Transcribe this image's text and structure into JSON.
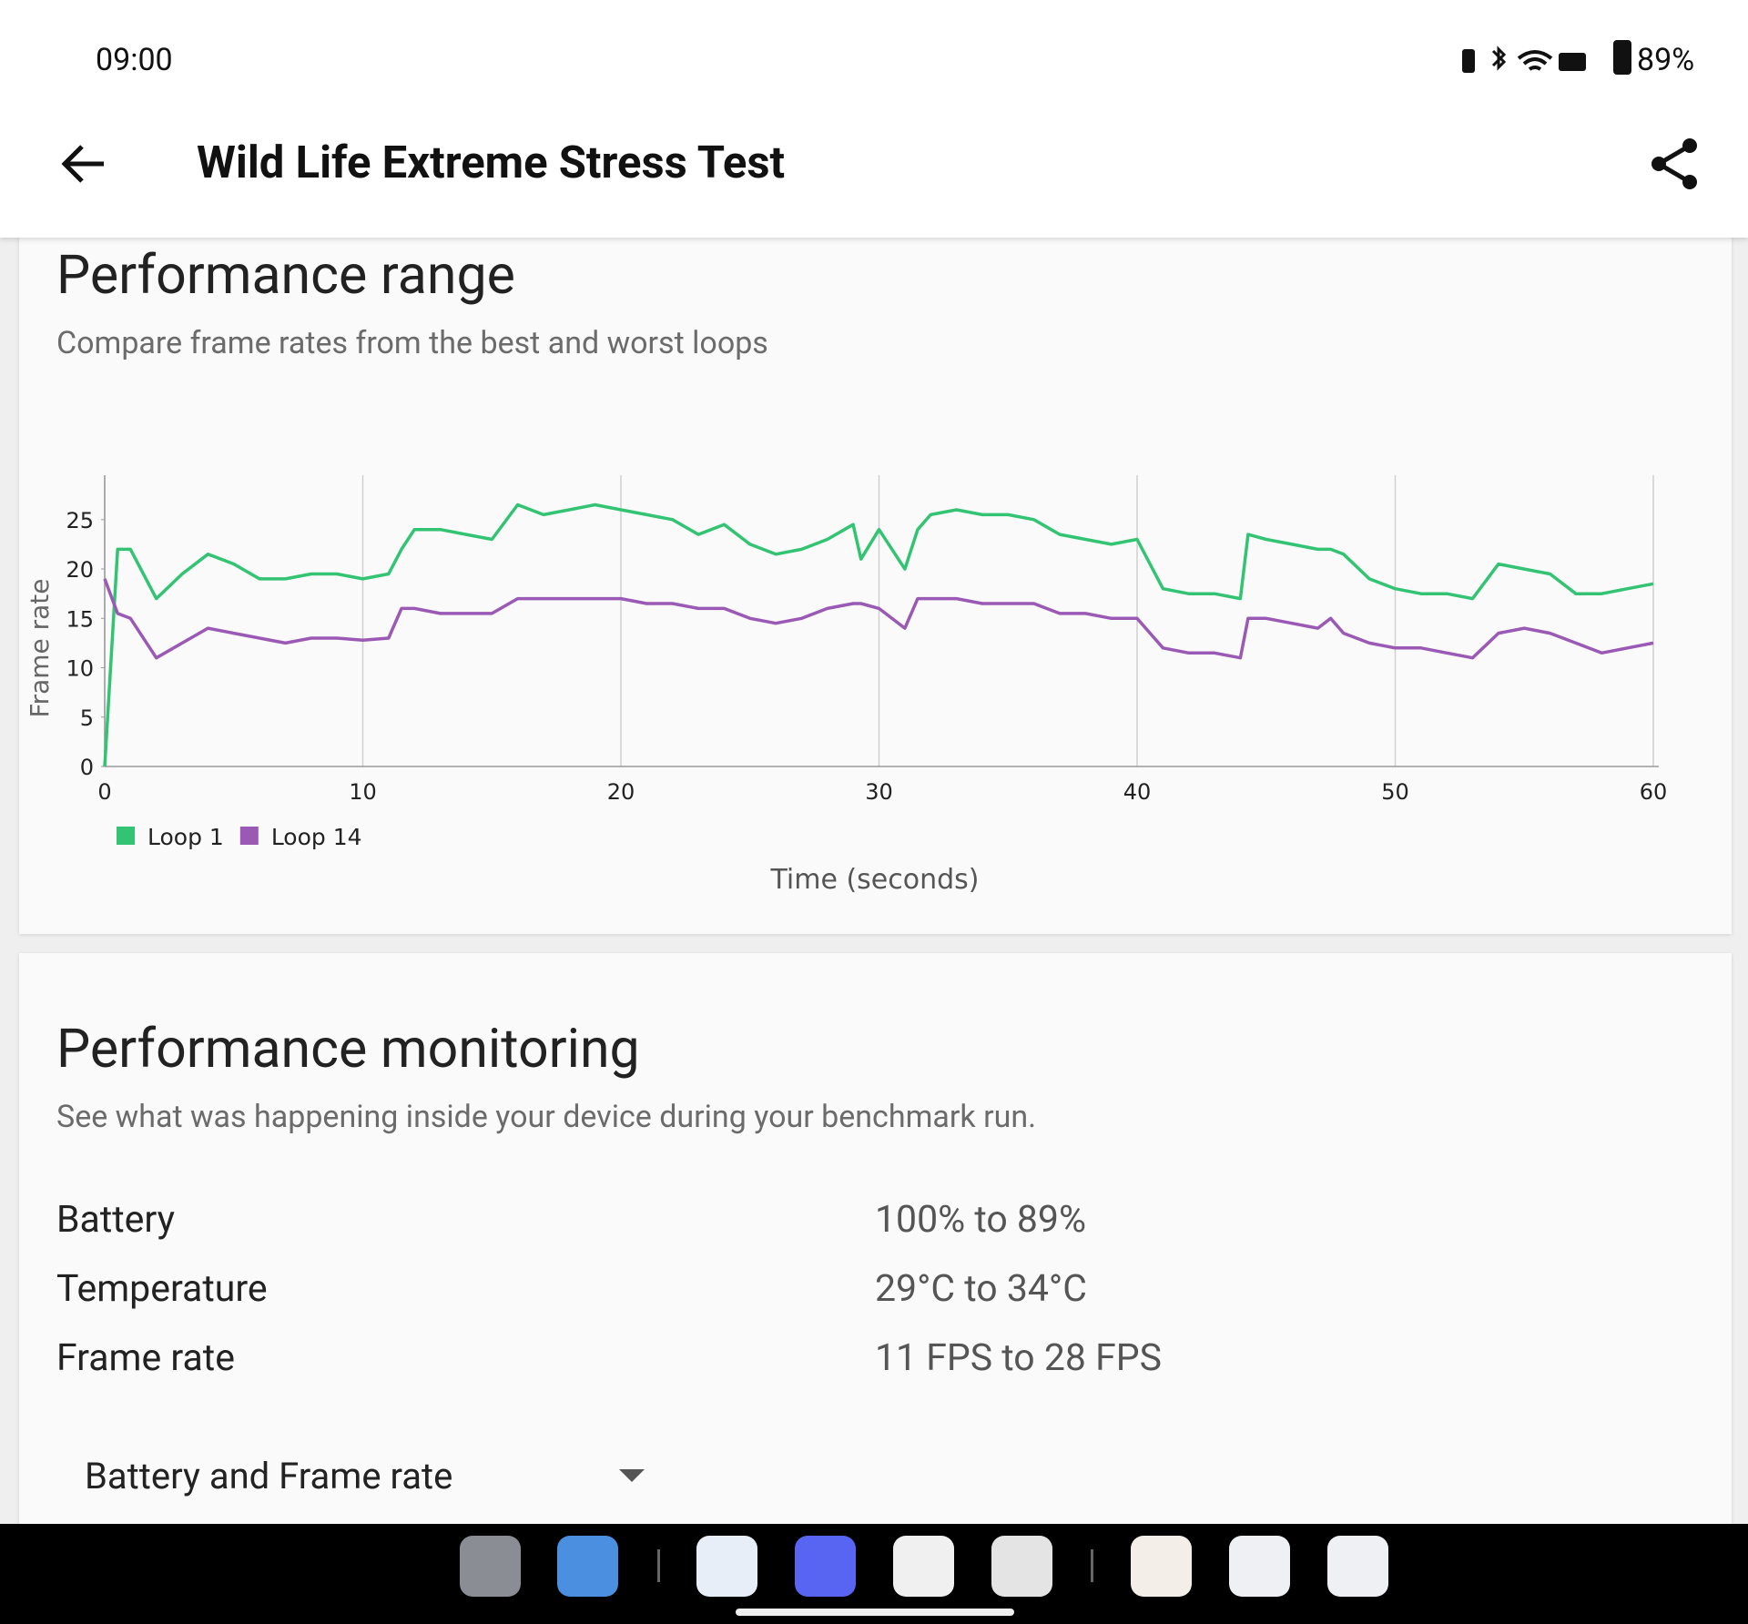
{
  "status_bar": {
    "time": "09:00",
    "battery": "89%"
  },
  "app_bar": {
    "title": "Wild Life Extreme Stress Test"
  },
  "performance_range": {
    "title": "Performance range",
    "subtitle": "Compare frame rates from the best and worst loops"
  },
  "chart_data": {
    "type": "line",
    "y_label": "Frame rate",
    "x_label": "Time (seconds)",
    "x": [
      0,
      0.5,
      1,
      2,
      3,
      4,
      5,
      6,
      7,
      8,
      9,
      10,
      11,
      11.5,
      12,
      13,
      14,
      15,
      16,
      17,
      18,
      19,
      20,
      21,
      22,
      23,
      24,
      25,
      26,
      27,
      28,
      29,
      29.3,
      30,
      31,
      31.5,
      32,
      33,
      34,
      35,
      36,
      37,
      38,
      39,
      40,
      41,
      42,
      43,
      44,
      44.3,
      45,
      46,
      47,
      47.5,
      48,
      49,
      50,
      51,
      52,
      53,
      54,
      55,
      56,
      57,
      58,
      59,
      60
    ],
    "series": [
      {
        "name": "Loop 1",
        "color": "#33c473",
        "values": [
          0,
          22,
          22,
          17,
          19.5,
          21.5,
          20.5,
          19,
          19,
          19.5,
          19.5,
          19,
          19.5,
          22,
          24,
          24,
          23.5,
          23,
          26.5,
          25.5,
          26,
          26.5,
          26,
          25.5,
          25,
          23.5,
          24.5,
          22.5,
          21.5,
          22,
          23,
          24.5,
          21,
          24,
          20,
          24,
          25.5,
          26,
          25.5,
          25.5,
          25,
          23.5,
          23,
          22.5,
          23,
          18,
          17.5,
          17.5,
          17,
          23.5,
          23,
          22.5,
          22,
          22,
          21.5,
          19,
          18,
          17.5,
          17.5,
          17,
          20.5,
          20,
          19.5,
          17.5,
          17.5,
          18,
          18.5
        ]
      },
      {
        "name": "Loop 14",
        "color": "#9b59b6",
        "values": [
          19,
          15.5,
          15,
          11,
          12.5,
          14,
          13.5,
          13,
          12.5,
          13,
          13,
          12.8,
          13,
          16,
          16,
          15.5,
          15.5,
          15.5,
          17,
          17,
          17,
          17,
          17,
          16.5,
          16.5,
          16,
          16,
          15,
          14.5,
          15,
          16,
          16.5,
          16.5,
          16,
          14,
          17,
          17,
          17,
          16.5,
          16.5,
          16.5,
          15.5,
          15.5,
          15,
          15,
          12,
          11.5,
          11.5,
          11,
          15,
          15,
          14.5,
          14,
          15,
          13.5,
          12.5,
          12,
          12,
          11.5,
          11,
          13.5,
          14,
          13.5,
          12.5,
          11.5,
          12,
          12.5
        ]
      }
    ],
    "xlim": [
      0,
      60
    ],
    "xticks": [
      0,
      10,
      20,
      30,
      40,
      50,
      60
    ],
    "ylim": [
      0,
      29.5
    ],
    "yticks": [
      0,
      5,
      10,
      15,
      20,
      25
    ],
    "grid": "x",
    "legend": "bottom-left"
  },
  "performance_monitoring": {
    "title": "Performance monitoring",
    "subtitle": "See what was happening inside your device during your benchmark run.",
    "rows": [
      [
        "Battery",
        "100% to 89%"
      ],
      [
        "Temperature",
        "29°C to 34°C"
      ],
      [
        "Frame rate",
        "11 FPS to 28 FPS"
      ]
    ],
    "dropdown": "Battery and Frame rate"
  }
}
